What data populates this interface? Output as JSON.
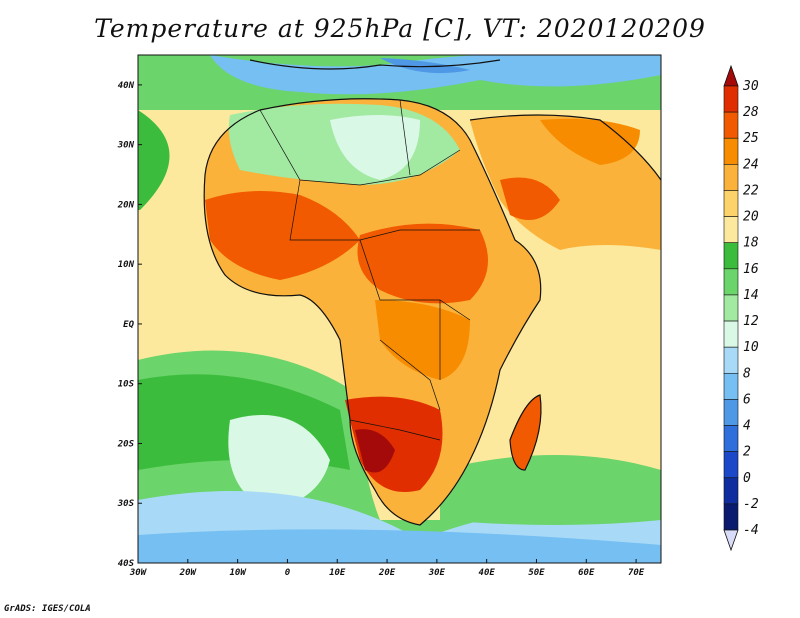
{
  "title": "Temperature at 925hPa [C], VT: 2020120209",
  "credit": "GrADS: IGES/COLA",
  "map": {
    "lon_range": [
      -30,
      75
    ],
    "lat_range": [
      -40,
      45
    ],
    "lon_ticks": [
      {
        "value": -30,
        "label": "30W"
      },
      {
        "value": -20,
        "label": "20W"
      },
      {
        "value": -10,
        "label": "10W"
      },
      {
        "value": 0,
        "label": "0"
      },
      {
        "value": 10,
        "label": "10E"
      },
      {
        "value": 20,
        "label": "20E"
      },
      {
        "value": 30,
        "label": "30E"
      },
      {
        "value": 40,
        "label": "40E"
      },
      {
        "value": 50,
        "label": "50E"
      },
      {
        "value": 60,
        "label": "60E"
      },
      {
        "value": 70,
        "label": "70E"
      }
    ],
    "lat_ticks": [
      {
        "value": 40,
        "label": "40N"
      },
      {
        "value": 30,
        "label": "30N"
      },
      {
        "value": 20,
        "label": "20N"
      },
      {
        "value": 10,
        "label": "10N"
      },
      {
        "value": 0,
        "label": "EQ"
      },
      {
        "value": -10,
        "label": "10S"
      },
      {
        "value": -20,
        "label": "20S"
      },
      {
        "value": -30,
        "label": "30S"
      },
      {
        "value": -40,
        "label": "40S"
      }
    ]
  },
  "colorbar": {
    "levels": [
      "30",
      "28",
      "25",
      "24",
      "22",
      "20",
      "18",
      "16",
      "14",
      "12",
      "10",
      "8",
      "6",
      "4",
      "2",
      "0",
      "-2",
      "-4"
    ],
    "colors": [
      "#a50a0a",
      "#e12e00",
      "#f15a00",
      "#f88c00",
      "#fbb23a",
      "#fcd36a",
      "#fde99e",
      "#3cbc3c",
      "#6bd46b",
      "#a2e9a2",
      "#daf8e6",
      "#a8daf7",
      "#76bff2",
      "#4f98e6",
      "#2e6fdc",
      "#1a48c8",
      "#0f2d9e",
      "#0a1a6e",
      "#d8dcf8"
    ]
  }
}
